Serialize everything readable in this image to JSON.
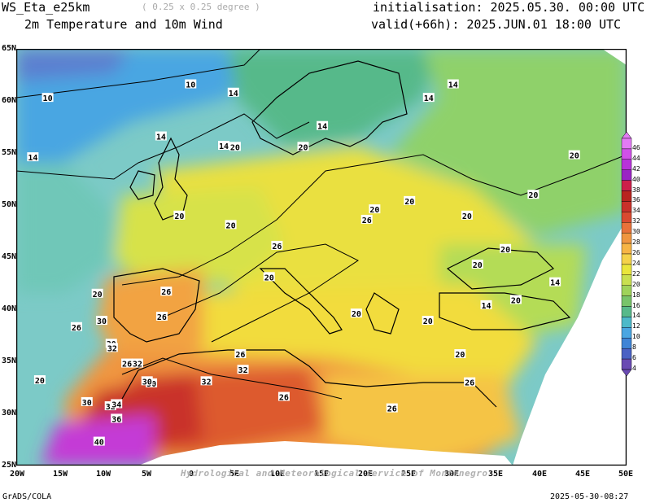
{
  "header": {
    "model": "WS_Eta_e25km",
    "resolution": "( 0.25 x 0.25 degree )",
    "field": "2m Temperature and 10m Wind",
    "init": "initialisation: 2025.05.30. 00:00 UTC",
    "valid": "valid(+66h): 2025.JUN.01 18:00 UTC"
  },
  "footer": {
    "left": "GrADS/COLA",
    "right": "2025-05-30-08:27",
    "watermark": "Hydrological and Meteorological service of Montenegro"
  },
  "axes": {
    "lat_labels": [
      "65N",
      "60N",
      "55N",
      "50N",
      "45N",
      "40N",
      "35N",
      "30N",
      "25N"
    ],
    "lon_labels": [
      "20W",
      "15W",
      "10W",
      "5W",
      "0",
      "5E",
      "10E",
      "15E",
      "20E",
      "25E",
      "30E",
      "35E",
      "40E",
      "45E",
      "50E"
    ]
  },
  "colorbar": {
    "labels": [
      "46",
      "44",
      "42",
      "40",
      "38",
      "36",
      "34",
      "32",
      "30",
      "28",
      "26",
      "24",
      "22",
      "20",
      "18",
      "16",
      "14",
      "12",
      "10",
      "8",
      "6",
      "4"
    ],
    "colors": [
      "#e37bf5",
      "#d050e8",
      "#b833d9",
      "#9a24c4",
      "#cc1f4a",
      "#b8241f",
      "#c9312a",
      "#d94a30",
      "#e8723a",
      "#f09640",
      "#f7b545",
      "#f5d24a",
      "#eae63c",
      "#c9e050",
      "#9fd35a",
      "#78c46a",
      "#57b98a",
      "#4db9c9",
      "#4aa6e2",
      "#3f84d6",
      "#4a61c4",
      "#6a4bb3"
    ]
  },
  "contour_labels": [
    {
      "t": "10",
      "lon": 0.0,
      "lat": 61.6
    },
    {
      "t": "10",
      "lon": -16.4,
      "lat": 60.3
    },
    {
      "t": "14",
      "lon": 4.9,
      "lat": 60.8
    },
    {
      "t": "14",
      "lon": 30.1,
      "lat": 61.6
    },
    {
      "t": "14",
      "lon": 27.3,
      "lat": 60.3
    },
    {
      "t": "14",
      "lon": 15.1,
      "lat": 57.6
    },
    {
      "t": "14",
      "lon": -3.4,
      "lat": 56.6
    },
    {
      "t": "14",
      "lon": -18.1,
      "lat": 54.6
    },
    {
      "t": "14",
      "lon": 3.8,
      "lat": 55.7
    },
    {
      "t": "20",
      "lon": 5.1,
      "lat": 55.6
    },
    {
      "t": "20",
      "lon": 12.9,
      "lat": 55.6
    },
    {
      "t": "20",
      "lon": 44.0,
      "lat": 54.8
    },
    {
      "t": "20",
      "lon": -1.3,
      "lat": 49.0
    },
    {
      "t": "20",
      "lon": 4.6,
      "lat": 48.1
    },
    {
      "t": "20",
      "lon": 21.1,
      "lat": 49.6
    },
    {
      "t": "20",
      "lon": 25.1,
      "lat": 50.4
    },
    {
      "t": "20",
      "lon": 39.3,
      "lat": 51.0
    },
    {
      "t": "20",
      "lon": 31.7,
      "lat": 49.0
    },
    {
      "t": "20",
      "lon": 36.1,
      "lat": 45.8
    },
    {
      "t": "20",
      "lon": 32.9,
      "lat": 44.3
    },
    {
      "t": "20",
      "lon": 9.0,
      "lat": 43.1
    },
    {
      "t": "20",
      "lon": -10.7,
      "lat": 41.5
    },
    {
      "t": "20",
      "lon": 19.0,
      "lat": 39.6
    },
    {
      "t": "20",
      "lon": 27.2,
      "lat": 38.9
    },
    {
      "t": "20",
      "lon": 37.3,
      "lat": 40.9
    },
    {
      "t": "20",
      "lon": 30.9,
      "lat": 35.7
    },
    {
      "t": "20",
      "lon": -17.3,
      "lat": 33.2
    },
    {
      "t": "26",
      "lon": 20.2,
      "lat": 48.6
    },
    {
      "t": "26",
      "lon": -2.8,
      "lat": 41.7
    },
    {
      "t": "26",
      "lon": -3.3,
      "lat": 39.3
    },
    {
      "t": "26",
      "lon": 9.9,
      "lat": 46.1
    },
    {
      "t": "26",
      "lon": -13.1,
      "lat": 38.3
    },
    {
      "t": "26",
      "lon": 5.7,
      "lat": 35.7
    },
    {
      "t": "26",
      "lon": -7.3,
      "lat": 34.8
    },
    {
      "t": "26",
      "lon": 10.7,
      "lat": 31.6
    },
    {
      "t": "26",
      "lon": 23.1,
      "lat": 30.5
    },
    {
      "t": "26",
      "lon": 32.0,
      "lat": 33.0
    },
    {
      "t": "30",
      "lon": -10.2,
      "lat": 38.9
    },
    {
      "t": "30",
      "lon": -9.1,
      "lat": 36.7
    },
    {
      "t": "30",
      "lon": -4.5,
      "lat": 32.9
    },
    {
      "t": "30",
      "lon": -11.9,
      "lat": 31.1
    },
    {
      "t": "30",
      "lon": -5.0,
      "lat": 33.1
    },
    {
      "t": "32",
      "lon": -9.0,
      "lat": 36.3
    },
    {
      "t": "32",
      "lon": -6.1,
      "lat": 34.8
    },
    {
      "t": "32",
      "lon": 1.8,
      "lat": 33.1
    },
    {
      "t": "32",
      "lon": 6.0,
      "lat": 34.2
    },
    {
      "t": "32",
      "lon": -9.2,
      "lat": 30.7
    },
    {
      "t": "34",
      "lon": -8.5,
      "lat": 30.9
    },
    {
      "t": "36",
      "lon": -8.5,
      "lat": 29.5
    },
    {
      "t": "40",
      "lon": -10.5,
      "lat": 27.3
    },
    {
      "t": "14",
      "lon": 41.8,
      "lat": 42.6
    },
    {
      "t": "14",
      "lon": 33.9,
      "lat": 40.4
    }
  ]
}
